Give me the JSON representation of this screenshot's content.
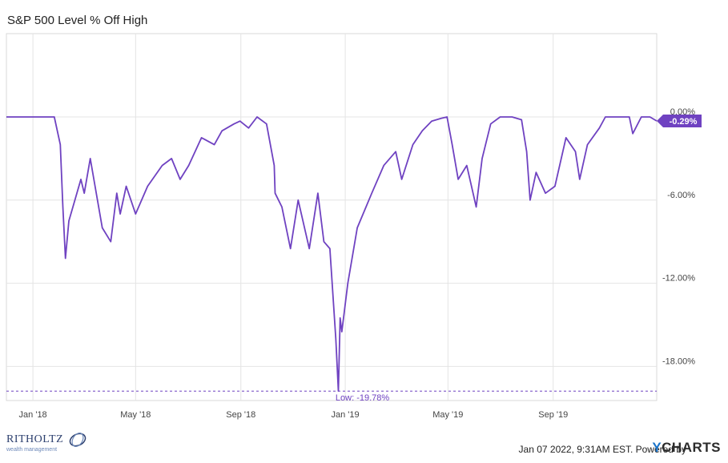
{
  "chart_data": {
    "type": "line",
    "title": "S&P 500 Level % Off High",
    "y_axis_side": "right",
    "ylim": [
      -20.5,
      1.8
    ],
    "y_ticks": [
      0,
      -6,
      -12,
      -18
    ],
    "y_tick_labels": [
      "0.00%",
      "-6.00%",
      "-12.00%",
      "-18.00%"
    ],
    "x_tick_labels": [
      "Jan '18",
      "May '18",
      "Sep '18",
      "Jan '19",
      "May '19",
      "Sep '19"
    ],
    "x_tick_dates": [
      "2018-01-01",
      "2018-05-01",
      "2018-09-01",
      "2019-01-01",
      "2019-05-01",
      "2019-09-01"
    ],
    "x_range": [
      "2017-12-01",
      "2019-12-31"
    ],
    "grid": true,
    "series": [
      {
        "name": "",
        "color": "#6f42c1",
        "last_value_label": "-0.29%",
        "x": [
          "2017-12-01",
          "2017-12-15",
          "2018-01-02",
          "2018-01-15",
          "2018-01-26",
          "2018-02-02",
          "2018-02-05",
          "2018-02-08",
          "2018-02-12",
          "2018-02-26",
          "2018-03-02",
          "2018-03-09",
          "2018-03-23",
          "2018-04-02",
          "2018-04-09",
          "2018-04-13",
          "2018-04-20",
          "2018-05-01",
          "2018-05-15",
          "2018-06-01",
          "2018-06-12",
          "2018-06-22",
          "2018-07-02",
          "2018-07-17",
          "2018-08-01",
          "2018-08-10",
          "2018-08-24",
          "2018-08-31",
          "2018-09-10",
          "2018-09-20",
          "2018-10-01",
          "2018-10-10",
          "2018-10-11",
          "2018-10-19",
          "2018-10-29",
          "2018-11-07",
          "2018-11-20",
          "2018-11-30",
          "2018-12-07",
          "2018-12-14",
          "2018-12-21",
          "2018-12-24",
          "2018-12-26",
          "2018-12-28",
          "2019-01-04",
          "2019-01-15",
          "2019-02-01",
          "2019-02-15",
          "2019-03-01",
          "2019-03-08",
          "2019-03-21",
          "2019-04-01",
          "2019-04-12",
          "2019-04-23",
          "2019-04-30",
          "2019-05-06",
          "2019-05-13",
          "2019-05-23",
          "2019-06-03",
          "2019-06-10",
          "2019-06-20",
          "2019-07-01",
          "2019-07-15",
          "2019-07-26",
          "2019-08-01",
          "2019-08-05",
          "2019-08-12",
          "2019-08-23",
          "2019-09-03",
          "2019-09-16",
          "2019-09-27",
          "2019-10-02",
          "2019-10-11",
          "2019-10-25",
          "2019-11-01",
          "2019-11-15",
          "2019-11-29",
          "2019-12-03",
          "2019-12-13",
          "2019-12-23",
          "2019-12-31"
        ],
        "values": [
          0.0,
          0.0,
          0.0,
          0.0,
          0.0,
          -2.0,
          -6.5,
          -10.2,
          -7.5,
          -4.5,
          -5.5,
          -3.0,
          -8.0,
          -9.0,
          -5.5,
          -7.0,
          -5.0,
          -7.0,
          -5.0,
          -3.5,
          -3.0,
          -4.5,
          -3.5,
          -1.5,
          -2.0,
          -1.0,
          -0.5,
          -0.3,
          -0.8,
          0.0,
          -0.5,
          -3.5,
          -5.5,
          -6.5,
          -9.5,
          -6.0,
          -9.5,
          -5.5,
          -9.0,
          -9.5,
          -16.0,
          -19.78,
          -14.5,
          -15.5,
          -12.0,
          -8.0,
          -5.5,
          -3.5,
          -2.5,
          -4.5,
          -2.0,
          -1.0,
          -0.3,
          -0.1,
          0.0,
          -2.0,
          -4.5,
          -3.5,
          -6.5,
          -3.0,
          -0.5,
          0.0,
          0.0,
          -0.2,
          -2.5,
          -6.0,
          -4.0,
          -5.5,
          -5.0,
          -1.5,
          -2.5,
          -4.5,
          -2.0,
          -0.8,
          0.0,
          0.0,
          0.0,
          -1.2,
          0.0,
          0.0,
          -0.29
        ]
      }
    ],
    "annotations": [
      {
        "type": "hline",
        "value": -19.78,
        "label": "Low: -19.78%",
        "style": "dashed"
      }
    ]
  },
  "footer": {
    "logo_text": "RITHOLTZ",
    "logo_subtext": "wealth management",
    "credit": "Jan 07 2022, 9:31AM EST. Powered by",
    "ycharts_y": "Y",
    "ycharts_rest": "CHARTS"
  }
}
